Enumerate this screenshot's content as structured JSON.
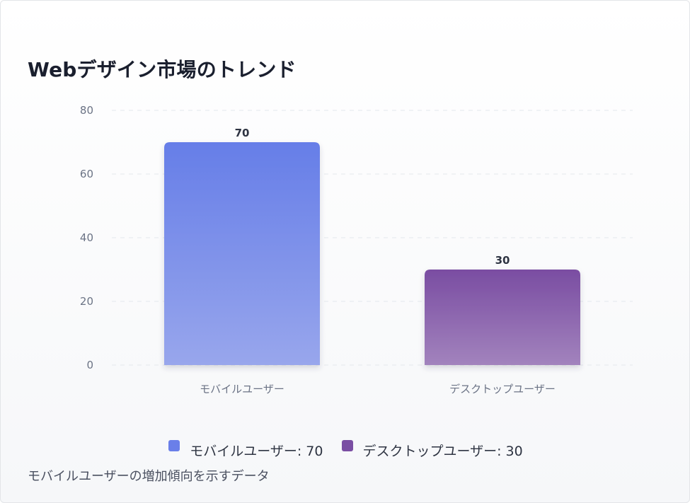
{
  "chart_data": {
    "type": "bar",
    "title": "Webデザイン市場のトレンド",
    "categories": [
      "モバイルユーザー",
      "デスクトップユーザー"
    ],
    "values": [
      70,
      30
    ],
    "data_labels": [
      "70",
      "30"
    ],
    "colors": [
      "#6a7fe9",
      "#7a4ea3"
    ],
    "ylim": [
      0,
      80
    ],
    "yticks": [
      "0",
      "20",
      "40",
      "60",
      "80"
    ],
    "xlabel": "",
    "ylabel": "",
    "grid": true,
    "legend_position": "bottom",
    "legend": [
      {
        "label": "モバイルユーザー: 70",
        "color": "#6a7fe9"
      },
      {
        "label": "デスクトップユーザー: 30",
        "color": "#7a4ea3"
      }
    ]
  },
  "footer_note": "モバイルユーザーの増加傾向を示すデータ"
}
